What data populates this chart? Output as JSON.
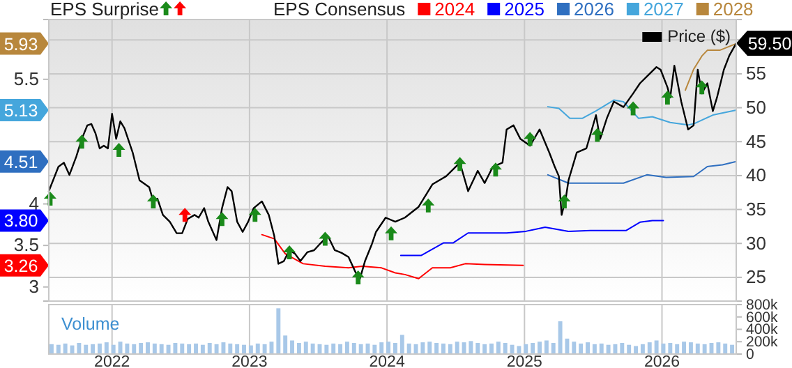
{
  "chart_data": [
    {
      "type": "line",
      "title": "EPS Surprise",
      "legend_title": "EPS Consensus",
      "legend": "top",
      "grid": true,
      "tick_labels": "y",
      "xlim": [
        2021.54,
        2026.54
      ],
      "xticks": [
        2022,
        2023,
        2024,
        2025,
        2026
      ],
      "ylim": [
        21.5,
        63
      ],
      "yticks": [
        25,
        30,
        35,
        40,
        45,
        50,
        55,
        {
          "value": 59.5,
          "label": "59.50"
        },
        {
          "value": 60,
          "label": null
        }
      ],
      "y2lim": [
        2.83,
        6.22
      ],
      "y2ticks": [
        3,
        3.26,
        3.5,
        {
          "value": 3.8,
          "label": "3.80"
        },
        4,
        4.51,
        5.13,
        5.5,
        5.93
      ],
      "series": [
        {
          "name": "2024",
          "color": "#ff0000",
          "axis": "y2",
          "x": [
            2023.09,
            2023.18,
            2023.26,
            2023.39,
            2023.55,
            2023.72,
            2023.82,
            2023.96,
            2024.06,
            2024.13,
            2024.23,
            2024.33,
            2024.46,
            2024.57,
            2024.71,
            2024.99
          ],
          "values": [
            3.63,
            3.58,
            3.4,
            3.28,
            3.25,
            3.23,
            3.25,
            3.23,
            3.17,
            3.15,
            3.1,
            3.23,
            3.23,
            3.28,
            3.27,
            3.26
          ]
        },
        {
          "name": "2025",
          "color": "#0000ff",
          "axis": "y2",
          "x": [
            2024.1,
            2024.25,
            2024.41,
            2024.48,
            2024.59,
            2024.71,
            2024.87,
            2025.01,
            2025.15,
            2025.32,
            2025.48,
            2025.74,
            2025.84,
            2025.93,
            2026.01
          ],
          "values": [
            3.38,
            3.38,
            3.53,
            3.53,
            3.65,
            3.65,
            3.65,
            3.67,
            3.72,
            3.67,
            3.68,
            3.68,
            3.78,
            3.8,
            3.8
          ]
        },
        {
          "name": "2026",
          "color": "#2f6fc0",
          "axis": "y2",
          "x": [
            2025.17,
            2025.32,
            2025.45,
            2025.72,
            2025.89,
            2026.03,
            2026.23,
            2026.33,
            2026.44,
            2026.54
          ],
          "values": [
            4.35,
            4.25,
            4.25,
            4.25,
            4.35,
            4.32,
            4.33,
            4.45,
            4.47,
            4.51
          ]
        },
        {
          "name": "2027",
          "color": "#45a6dc",
          "axis": "y2",
          "x": [
            2025.17,
            2025.25,
            2025.33,
            2025.42,
            2025.52,
            2025.65,
            2025.72,
            2025.83,
            2025.93,
            2026.06,
            2026.19,
            2026.24,
            2026.37,
            2026.54
          ],
          "values": [
            5.17,
            5.15,
            5.03,
            5.03,
            5.12,
            5.25,
            5.23,
            5.03,
            5.05,
            4.98,
            4.95,
            4.97,
            5.07,
            5.13
          ]
        },
        {
          "name": "2028",
          "color": "#b8873c",
          "axis": "y2",
          "x": [
            2026.17,
            2026.23,
            2026.29,
            2026.33,
            2026.42,
            2026.54
          ],
          "values": [
            5.37,
            5.62,
            5.78,
            5.85,
            5.85,
            5.93
          ]
        },
        {
          "name": "Price ($)",
          "color": "#000000",
          "x": [
            2021.54,
            2021.61,
            2021.65,
            2021.69,
            2021.74,
            2021.78,
            2021.82,
            2021.85,
            2021.88,
            2021.91,
            2021.94,
            2021.97,
            2022.0,
            2022.03,
            2022.06,
            2022.09,
            2022.15,
            2022.2,
            2022.27,
            2022.3,
            2022.33,
            2022.37,
            2022.42,
            2022.47,
            2022.51,
            2022.55,
            2022.6,
            2022.63,
            2022.67,
            2022.7,
            2022.76,
            2022.8,
            2022.84,
            2022.87,
            2022.91,
            2022.95,
            2022.99,
            2023.03,
            2023.09,
            2023.14,
            2023.18,
            2023.21,
            2023.25,
            2023.29,
            2023.33,
            2023.37,
            2023.42,
            2023.47,
            2023.52,
            2023.57,
            2023.62,
            2023.67,
            2023.72,
            2023.77,
            2023.8,
            2023.84,
            2023.89,
            2023.92,
            2023.99,
            2024.06,
            2024.13,
            2024.23,
            2024.33,
            2024.43,
            2024.53,
            2024.59,
            2024.66,
            2024.71,
            2024.77,
            2024.84,
            2024.87,
            2024.92,
            2024.97,
            2025.04,
            2025.11,
            2025.18,
            2025.22,
            2025.25,
            2025.27,
            2025.3,
            2025.32,
            2025.38,
            2025.45,
            2025.52,
            2025.55,
            2025.6,
            2025.65,
            2025.72,
            2025.79,
            2025.84,
            2025.91,
            2025.96,
            2025.99,
            2026.04,
            2026.06,
            2026.09,
            2026.14,
            2026.19,
            2026.23,
            2026.26,
            2026.29,
            2026.33,
            2026.37,
            2026.4,
            2026.45,
            2026.49,
            2026.54
          ],
          "values": [
            37.7,
            41.3,
            41.9,
            40.1,
            42.8,
            45.4,
            47.4,
            47.6,
            46.2,
            44.0,
            44.4,
            44.0,
            49.1,
            45.4,
            48.0,
            47.0,
            43.4,
            39.3,
            38.3,
            36.2,
            36.6,
            34.2,
            33.2,
            31.5,
            31.5,
            33.6,
            34.2,
            33.8,
            35.2,
            33.2,
            30.5,
            35.2,
            38.3,
            37.7,
            33.2,
            31.7,
            33.2,
            35.2,
            36.2,
            34.2,
            31.1,
            27.0,
            27.4,
            29.0,
            28.5,
            27.4,
            28.7,
            29.0,
            30.1,
            31.1,
            29.0,
            28.6,
            28.0,
            25.8,
            24.6,
            27.4,
            29.9,
            31.7,
            33.8,
            33.2,
            33.8,
            35.4,
            38.7,
            39.9,
            41.9,
            37.7,
            40.7,
            38.9,
            41.3,
            41.9,
            46.8,
            47.4,
            45.4,
            44.4,
            46.8,
            43.4,
            41.3,
            39.9,
            34.2,
            36.6,
            39.3,
            43.4,
            44.0,
            48.9,
            45.4,
            48.5,
            50.9,
            50.1,
            52.1,
            53.6,
            55.0,
            56.0,
            55.6,
            53.0,
            51.5,
            56.2,
            50.9,
            46.8,
            47.4,
            55.6,
            52.1,
            53.6,
            49.5,
            51.5,
            55.6,
            57.7,
            59.5
          ]
        },
        {
          "type": "scatter",
          "marker": "triangle",
          "color": "#1a8a1a",
          "x": [
            2021.55,
            2021.78,
            2022.05,
            2022.3,
            2022.8,
            2023.04,
            2023.29,
            2023.55,
            2023.79,
            2024.03,
            2024.3,
            2024.53,
            2024.79,
            2025.04,
            2025.29,
            2025.53,
            2025.79,
            2026.04,
            2026.29
          ],
          "values": [
            36.6,
            45.0,
            43.8,
            36.2,
            33.6,
            34.2,
            28.7,
            30.7,
            25.0,
            31.5,
            35.6,
            41.7,
            40.9,
            45.4,
            36.2,
            46.0,
            49.9,
            51.5,
            53.0
          ]
        },
        {
          "type": "scatter",
          "marker": "triangle",
          "color": "#ff0000",
          "x": [
            2022.53
          ],
          "values": [
            34.2
          ]
        }
      ]
    },
    {
      "type": "bar",
      "title": "Volume",
      "grid": "x",
      "xlim": [
        2021.54,
        2026.54
      ],
      "xticks": [
        2022,
        2023,
        2024,
        2025,
        2026
      ],
      "ylim": [
        0,
        800000
      ],
      "yticks": [
        0,
        {
          "value": 200000,
          "label": "200k"
        },
        {
          "value": 400000,
          "label": "400k"
        },
        {
          "value": 600000,
          "label": "600k"
        },
        {
          "value": 800000,
          "label": "800k"
        }
      ],
      "x": [
        2021.56,
        2021.61,
        2021.66,
        2021.71,
        2021.76,
        2021.81,
        2021.86,
        2021.91,
        2021.96,
        2022.01,
        2022.06,
        2022.11,
        2022.16,
        2022.21,
        2022.26,
        2022.31,
        2022.36,
        2022.41,
        2022.46,
        2022.51,
        2022.56,
        2022.61,
        2022.66,
        2022.71,
        2022.76,
        2022.81,
        2022.86,
        2022.91,
        2022.96,
        2023.01,
        2023.06,
        2023.11,
        2023.16,
        2023.21,
        2023.26,
        2023.31,
        2023.36,
        2023.41,
        2023.46,
        2023.51,
        2023.56,
        2023.61,
        2023.66,
        2023.71,
        2023.76,
        2023.81,
        2023.86,
        2023.91,
        2023.96,
        2024.01,
        2024.06,
        2024.11,
        2024.16,
        2024.21,
        2024.26,
        2024.31,
        2024.36,
        2024.41,
        2024.46,
        2024.51,
        2024.56,
        2024.61,
        2024.66,
        2024.71,
        2024.76,
        2024.81,
        2024.86,
        2024.91,
        2024.96,
        2025.01,
        2025.06,
        2025.11,
        2025.16,
        2025.21,
        2025.26,
        2025.31,
        2025.36,
        2025.41,
        2025.46,
        2025.51,
        2025.56,
        2025.61,
        2025.66,
        2025.71,
        2025.76,
        2025.81,
        2025.86,
        2025.91,
        2025.96,
        2026.01,
        2026.06,
        2026.11,
        2026.16,
        2026.21,
        2026.26,
        2026.31,
        2026.36,
        2026.41,
        2026.46,
        2026.51
      ],
      "series": [
        {
          "color": "#a8c8e8",
          "values": [
            160000,
            150000,
            170000,
            140000,
            180000,
            150000,
            160000,
            170000,
            190000,
            150000,
            200000,
            170000,
            160000,
            180000,
            190000,
            170000,
            160000,
            150000,
            180000,
            170000,
            160000,
            170000,
            150000,
            180000,
            160000,
            190000,
            170000,
            160000,
            150000,
            140000,
            170000,
            160000,
            200000,
            740000,
            300000,
            220000,
            180000,
            200000,
            170000,
            160000,
            150000,
            170000,
            160000,
            200000,
            180000,
            160000,
            170000,
            150000,
            190000,
            200000,
            180000,
            310000,
            170000,
            160000,
            190000,
            200000,
            180000,
            170000,
            160000,
            200000,
            190000,
            210000,
            180000,
            160000,
            170000,
            200000,
            180000,
            150000,
            130000,
            160000,
            180000,
            200000,
            220000,
            180000,
            530000,
            250000,
            200000,
            170000,
            190000,
            160000,
            170000,
            150000,
            160000,
            180000,
            150000,
            130000,
            160000,
            190000,
            220000,
            170000,
            180000,
            160000,
            200000,
            190000,
            170000,
            160000,
            180000,
            190000,
            170000,
            150000
          ]
        }
      ]
    }
  ]
}
